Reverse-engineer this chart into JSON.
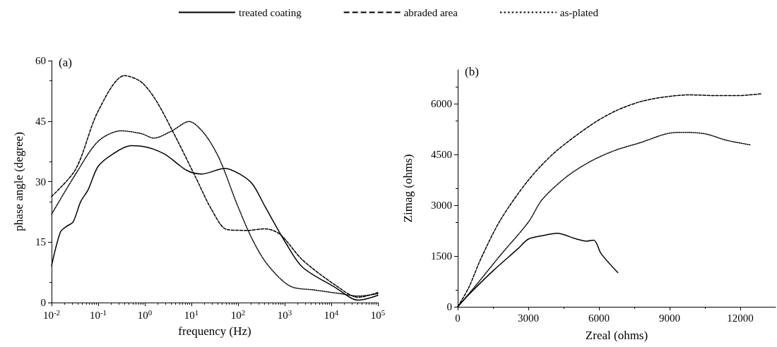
{
  "chart_data": [
    {
      "type": "line",
      "xlabel": "frequency (Hz)",
      "ylabel": "phase angle (degree)",
      "annotations": [
        "(a)"
      ],
      "log": "x",
      "legend": "top",
      "grid": false,
      "marker": "none",
      "xlim": [
        0.01,
        100000
      ],
      "xticks": [
        {
          "value": 0.01,
          "label": "10$^{-2}$"
        },
        {
          "value": 0.1,
          "label": "10$^{-1}$"
        },
        {
          "value": 1,
          "label": "10$^{0}$"
        },
        {
          "value": 10,
          "label": "10$^{1}$"
        },
        {
          "value": 100,
          "label": "10$^{2}$"
        },
        {
          "value": 1000,
          "label": "10$^{3}$"
        },
        {
          "value": 10000,
          "label": "10$^{4}$"
        },
        {
          "value": 100000,
          "label": "10$^{5}$"
        }
      ],
      "ylim": [
        0,
        60
      ],
      "yticks": [
        0,
        15,
        30,
        45,
        60
      ],
      "series": [
        {
          "name": "treated coating",
          "color": "#000000",
          "line_style": "solid",
          "x": [
            0.01,
            0.0155,
            0.021,
            0.029,
            0.042,
            0.061,
            0.1,
            0.21,
            0.5,
            0.84,
            2.6,
            7.9,
            16.8,
            52,
            108,
            204,
            380,
            1030,
            2400,
            12000,
            38000,
            100000
          ],
          "values": [
            9.1,
            17.5,
            18.9,
            20,
            25,
            28,
            33.8,
            36.9,
            38.9,
            38.8,
            36.9,
            32.8,
            31.9,
            33.3,
            31.9,
            29.4,
            23.8,
            15,
            8.8,
            3.8,
            0.6,
            1.8
          ]
        },
        {
          "name": "abraded area",
          "color": "#000000",
          "line_style": "dashed",
          "x": [
            0.01,
            0.033,
            0.1,
            0.37,
            0.84,
            1.77,
            4.8,
            12.9,
            27,
            58,
            157,
            380,
            800,
            2400,
            12000,
            38000,
            100000
          ],
          "values": [
            26.3,
            33.1,
            47.5,
            56.3,
            54.7,
            50,
            40.6,
            30.6,
            23.1,
            18.1,
            17.9,
            18.3,
            16.9,
            10.6,
            4.4,
            1.3,
            2.5
          ]
        },
        {
          "name": "as-plated",
          "color": "#000000",
          "line_style": "dotted",
          "x": [
            0.01,
            0.033,
            0.1,
            0.31,
            0.84,
            1.56,
            3.7,
            8.9,
            18.9,
            40,
            95,
            204,
            430,
            1300,
            4500,
            16000,
            38000,
            100000
          ],
          "values": [
            21.9,
            31.9,
            40,
            42.6,
            41.9,
            40.8,
            42.5,
            44.9,
            41.9,
            35.6,
            24.4,
            15.6,
            9.4,
            4.1,
            3.1,
            2.2,
            1.6,
            2.2
          ]
        }
      ]
    },
    {
      "type": "line",
      "xlabel": "Zreal (ohms)",
      "ylabel": "Zimag (ohms)",
      "annotations": [
        "(b)"
      ],
      "grid": false,
      "marker": "none",
      "xlim": [
        0,
        13500
      ],
      "xticks": [
        0,
        3000,
        6000,
        9000,
        12000
      ],
      "ylim": [
        0,
        7000
      ],
      "yticks": [
        0,
        1500,
        3000,
        4500,
        6000
      ],
      "series": [
        {
          "color": "#000000",
          "line_style": "solid",
          "x": [
            0,
            470,
            1510,
            2550,
            3000,
            3590,
            4220,
            5050,
            5470,
            5780,
            6090,
            6800
          ],
          "values": [
            0,
            360,
            1070,
            1710,
            2000,
            2100,
            2170,
            2000,
            1940,
            1970,
            1570,
            1010
          ]
        },
        {
          "color": "#000000",
          "line_style": "dashed",
          "x": [
            0,
            470,
            990,
            1820,
            3000,
            4120,
            5680,
            6720,
            7760,
            8800,
            9840,
            10890,
            11930,
            12870
          ],
          "values": [
            0,
            570,
            1430,
            2570,
            3740,
            4560,
            5380,
            5790,
            6060,
            6200,
            6260,
            6240,
            6240,
            6290
          ]
        },
        {
          "color": "#000000",
          "line_style": "dotted",
          "x": [
            0,
            780,
            1820,
            3000,
            3590,
            4640,
            5680,
            6720,
            7760,
            8800,
            9320,
            9840,
            10570,
            11410,
            12450
          ],
          "values": [
            0,
            640,
            1530,
            2500,
            3170,
            3850,
            4310,
            4630,
            4850,
            5100,
            5150,
            5150,
            5100,
            4920,
            4780
          ]
        }
      ]
    }
  ]
}
